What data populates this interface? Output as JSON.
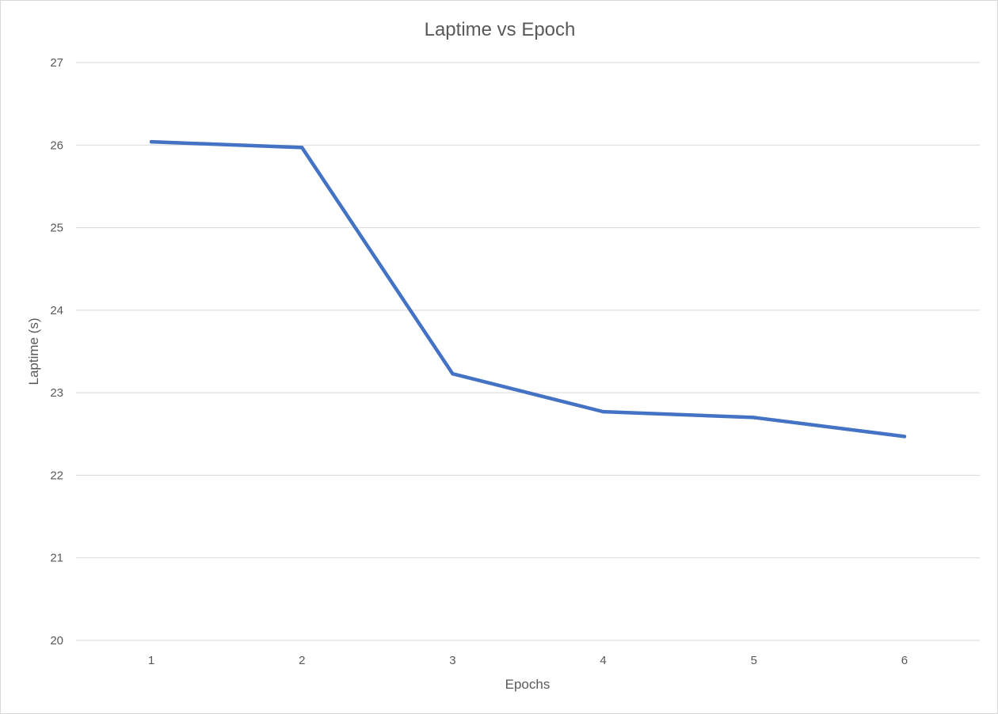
{
  "chart_data": {
    "type": "line",
    "title": "Laptime vs Epoch",
    "xlabel": "Epochs",
    "ylabel": "Laptime (s)",
    "categories": [
      "1",
      "2",
      "3",
      "4",
      "5",
      "6"
    ],
    "series": [
      {
        "values": [
          26.04,
          25.97,
          23.23,
          22.77,
          22.7,
          22.47
        ]
      }
    ],
    "ylim": [
      20,
      27
    ],
    "yticks": [
      "20",
      "21",
      "22",
      "23",
      "24",
      "25",
      "26",
      "27"
    ],
    "grid": true,
    "legend": "none",
    "colors": {
      "series": "#4472c4",
      "grid": "#d9d9d9",
      "text": "#595959"
    }
  }
}
